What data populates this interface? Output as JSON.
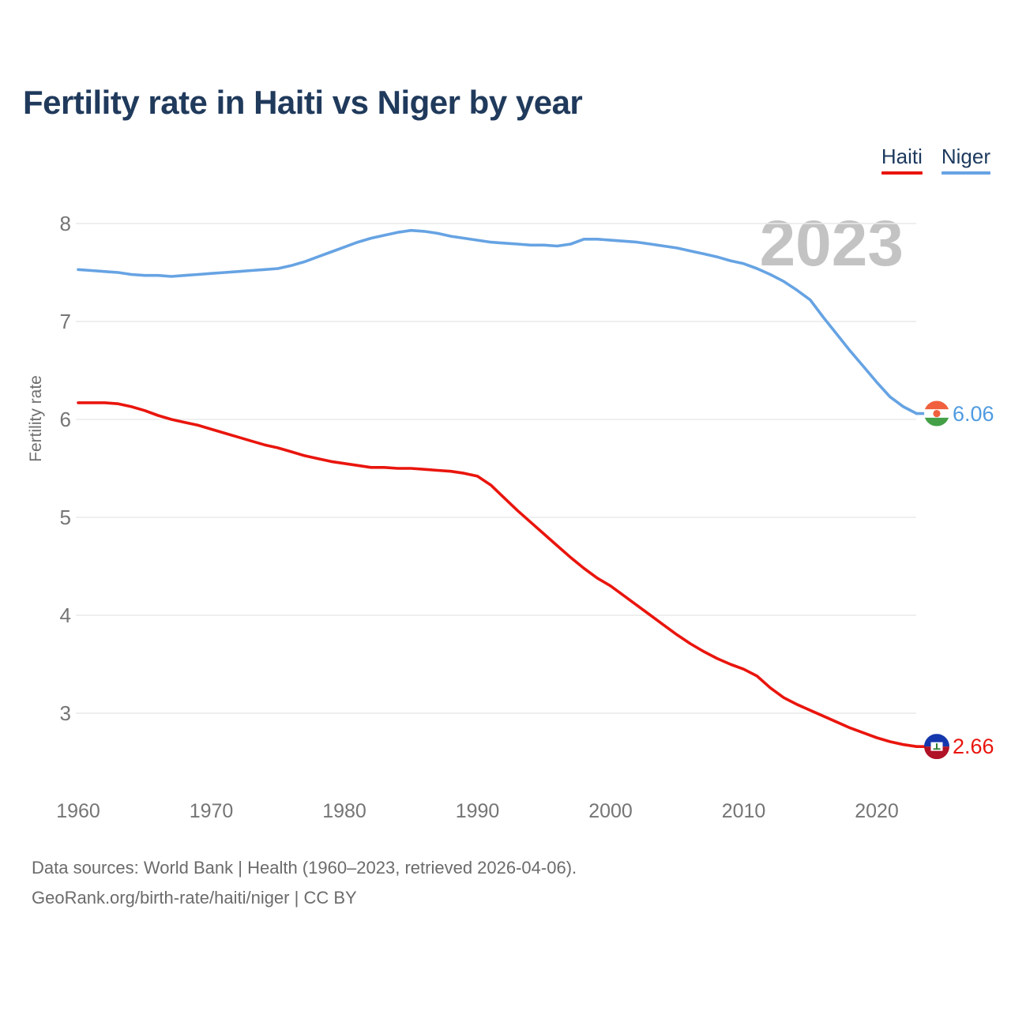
{
  "title": "Fertility rate in Haiti vs Niger by year",
  "watermark": "2023",
  "legend": [
    {
      "label": "Haiti",
      "color": "#e9150d"
    },
    {
      "label": "Niger",
      "color": "#66a3e3"
    }
  ],
  "y_axis": {
    "label": "Fertility rate",
    "ticks": [
      "8",
      "7",
      "6",
      "5",
      "4",
      "3"
    ]
  },
  "x_axis": {
    "ticks": [
      "1960",
      "1970",
      "1980",
      "1990",
      "2000",
      "2010",
      "2020"
    ]
  },
  "end_labels": [
    {
      "series": "Niger",
      "value": "6.06",
      "color": "#4f9be2",
      "flag_icon": "niger-flag-icon"
    },
    {
      "series": "Haiti",
      "value": "2.66",
      "color": "#e9150d",
      "flag_icon": "haiti-flag-icon"
    }
  ],
  "footer": {
    "line1": "Data sources: World Bank | Health (1960–2023, retrieved 2026-04-06).",
    "line2": "GeoRank.org/birth-rate/haiti/niger | CC BY"
  },
  "chart_data": {
    "type": "line",
    "title": "Fertility rate in Haiti vs Niger by year",
    "xlabel": "",
    "ylabel": "Fertility rate",
    "x_range": [
      1960,
      2023
    ],
    "ylim": [
      2.45,
      8.15
    ],
    "yticks": [
      8,
      7,
      6,
      5,
      4,
      3
    ],
    "xticks": [
      1960,
      1970,
      1980,
      1990,
      2000,
      2010,
      2020
    ],
    "grid": "horizontal",
    "legend_position": "top-right",
    "x": [
      1960,
      1961,
      1962,
      1963,
      1964,
      1965,
      1966,
      1967,
      1968,
      1969,
      1970,
      1971,
      1972,
      1973,
      1974,
      1975,
      1976,
      1977,
      1978,
      1979,
      1980,
      1981,
      1982,
      1983,
      1984,
      1985,
      1986,
      1987,
      1988,
      1989,
      1990,
      1991,
      1992,
      1993,
      1994,
      1995,
      1996,
      1997,
      1998,
      1999,
      2000,
      2001,
      2002,
      2003,
      2004,
      2005,
      2006,
      2007,
      2008,
      2009,
      2010,
      2011,
      2012,
      2013,
      2014,
      2015,
      2016,
      2017,
      2018,
      2019,
      2020,
      2021,
      2022,
      2023
    ],
    "series": [
      {
        "name": "Haiti",
        "color": "#e9150d",
        "end_value": 2.66,
        "values": [
          6.17,
          6.17,
          6.17,
          6.16,
          6.13,
          6.09,
          6.04,
          6.0,
          5.97,
          5.94,
          5.9,
          5.86,
          5.82,
          5.78,
          5.74,
          5.71,
          5.67,
          5.63,
          5.6,
          5.57,
          5.55,
          5.53,
          5.51,
          5.51,
          5.5,
          5.5,
          5.49,
          5.48,
          5.47,
          5.45,
          5.42,
          5.33,
          5.2,
          5.07,
          4.95,
          4.83,
          4.71,
          4.59,
          4.48,
          4.38,
          4.3,
          4.2,
          4.1,
          4.0,
          3.9,
          3.8,
          3.71,
          3.63,
          3.56,
          3.5,
          3.45,
          3.38,
          3.26,
          3.16,
          3.09,
          3.03,
          2.97,
          2.91,
          2.85,
          2.8,
          2.75,
          2.71,
          2.68,
          2.66
        ]
      },
      {
        "name": "Niger",
        "color": "#66a3e3",
        "end_value": 6.06,
        "values": [
          7.53,
          7.52,
          7.51,
          7.5,
          7.48,
          7.47,
          7.47,
          7.46,
          7.47,
          7.48,
          7.49,
          7.5,
          7.51,
          7.52,
          7.53,
          7.54,
          7.57,
          7.61,
          7.66,
          7.71,
          7.76,
          7.81,
          7.85,
          7.88,
          7.91,
          7.93,
          7.92,
          7.9,
          7.87,
          7.85,
          7.83,
          7.81,
          7.8,
          7.79,
          7.78,
          7.78,
          7.77,
          7.79,
          7.84,
          7.84,
          7.83,
          7.82,
          7.81,
          7.79,
          7.77,
          7.75,
          7.72,
          7.69,
          7.66,
          7.62,
          7.59,
          7.54,
          7.48,
          7.41,
          7.32,
          7.22,
          7.04,
          6.87,
          6.7,
          6.54,
          6.38,
          6.23,
          6.13,
          6.06
        ]
      }
    ]
  }
}
